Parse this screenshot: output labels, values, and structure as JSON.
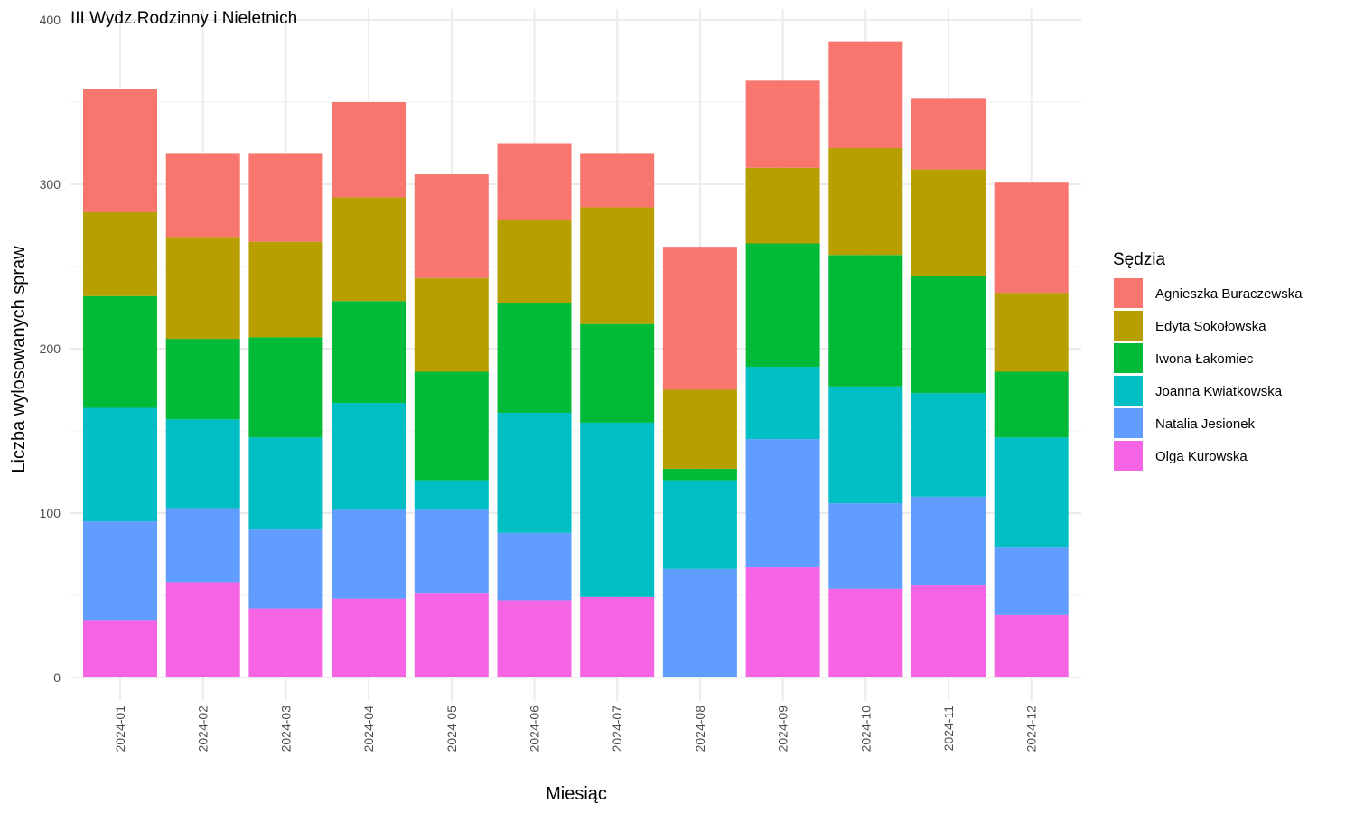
{
  "chart_data": {
    "type": "bar",
    "stacked": true,
    "title": "III Wydz.Rodzinny i Nieletnich",
    "xlabel": "Miesiąc",
    "ylabel": "Liczba wylosowanych spraw",
    "ylim": [
      0,
      400
    ],
    "yticks": [
      0,
      100,
      200,
      300,
      400
    ],
    "grid": true,
    "legend_title": "Sędzia",
    "legend_position": "right",
    "categories": [
      "2024-01",
      "2024-02",
      "2024-03",
      "2024-04",
      "2024-05",
      "2024-06",
      "2024-07",
      "2024-08",
      "2024-09",
      "2024-10",
      "2024-11",
      "2024-12"
    ],
    "series": [
      {
        "name": "Agnieszka Buraczewska",
        "color": "#F8766D",
        "values": [
          75,
          51,
          54,
          58,
          63,
          47,
          33,
          87,
          53,
          65,
          43,
          67
        ]
      },
      {
        "name": "Edyta Sokołowska",
        "color": "#B79F00",
        "values": [
          51,
          62,
          58,
          63,
          57,
          50,
          71,
          48,
          46,
          65,
          65,
          48
        ]
      },
      {
        "name": "Iwona Łakomiec",
        "color": "#00BA38",
        "values": [
          68,
          49,
          61,
          62,
          66,
          67,
          60,
          7,
          75,
          80,
          71,
          40
        ]
      },
      {
        "name": "Joanna Kwiatkowska",
        "color": "#00BFC4",
        "values": [
          69,
          54,
          56,
          65,
          18,
          73,
          106,
          54,
          44,
          71,
          63,
          67
        ]
      },
      {
        "name": "Natalia Jesionek",
        "color": "#619CFF",
        "values": [
          60,
          45,
          48,
          54,
          51,
          41,
          0,
          66,
          78,
          52,
          54,
          41
        ]
      },
      {
        "name": "Olga Kurowska",
        "color": "#F564E3",
        "values": [
          35,
          58,
          42,
          48,
          51,
          47,
          49,
          0,
          67,
          54,
          56,
          38
        ]
      }
    ]
  }
}
